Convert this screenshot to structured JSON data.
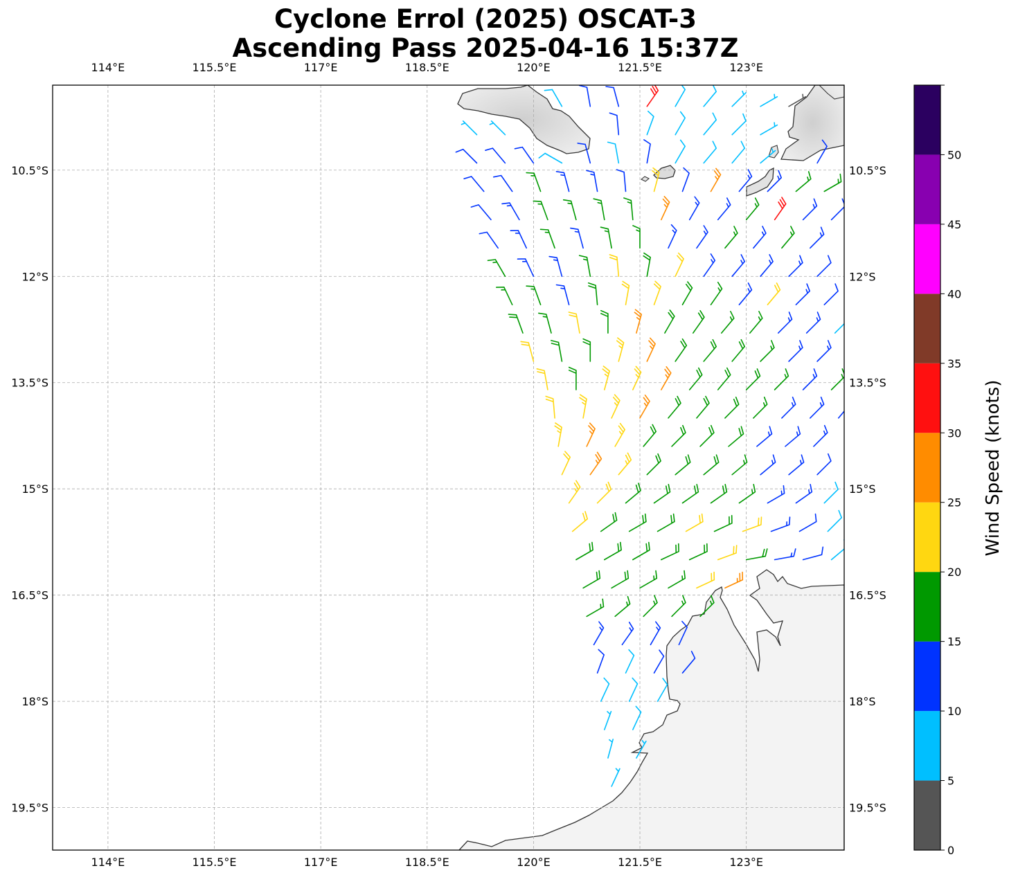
{
  "title": {
    "line1": "Cyclone Errol (2025) OSCAT-3",
    "line2": "Ascending Pass 2025-04-16 15:37Z"
  },
  "map": {
    "lon_range": [
      113.22,
      124.38
    ],
    "lat_range": [
      -20.1,
      -9.3
    ],
    "lon_ticks": [
      114,
      115.5,
      117,
      118.5,
      120,
      121.5,
      123
    ],
    "lon_tick_labels": [
      "114°E",
      "115.5°E",
      "117°E",
      "118.5°E",
      "120°E",
      "121.5°E",
      "123°E"
    ],
    "lat_ticks": [
      -10.5,
      -12,
      -13.5,
      -15,
      -16.5,
      -18,
      -19.5
    ],
    "lat_tick_labels": [
      "10.5°S",
      "12°S",
      "13.5°S",
      "15°S",
      "16.5°S",
      "18°S",
      "19.5°S"
    ],
    "grid": true,
    "land_color": "#eeeeee",
    "coastline_color": "#333333"
  },
  "colorbar": {
    "label": "Wind Speed (knots)",
    "ticks": [
      "0",
      "5",
      "10",
      "15",
      "20",
      "25",
      "30",
      "35",
      "40",
      "45",
      "50"
    ],
    "bins": [
      0,
      5,
      10,
      15,
      20,
      25,
      30,
      35,
      40,
      45,
      50,
      55
    ],
    "colors": [
      "#555555",
      "#00bfff",
      "#0033ff",
      "#009900",
      "#ffd711",
      "#ff8c00",
      "#ff1010",
      "#803a28",
      "#ff00ff",
      "#8800b0",
      "#2b0060"
    ]
  },
  "chart_data": {
    "type": "wind-barbs",
    "units": "knots",
    "fields": [
      "lon",
      "lat",
      "speed_kt",
      "direction_from_deg"
    ],
    "barbs": [
      [
        120.4,
        -9.6,
        8,
        330
      ],
      [
        120.8,
        -9.6,
        12,
        350
      ],
      [
        121.2,
        -9.6,
        12,
        345
      ],
      [
        121.6,
        -9.6,
        32,
        35
      ],
      [
        122.0,
        -9.6,
        8,
        30
      ],
      [
        122.4,
        -9.6,
        8,
        40
      ],
      [
        122.8,
        -9.6,
        7,
        45
      ],
      [
        123.2,
        -9.6,
        6,
        60
      ],
      [
        123.6,
        -9.6,
        4,
        60
      ],
      [
        119.2,
        -10.0,
        7,
        315
      ],
      [
        119.6,
        -10.0,
        7,
        315
      ],
      [
        121.2,
        -10.0,
        12,
        355
      ],
      [
        121.6,
        -10.0,
        8,
        20
      ],
      [
        122.0,
        -10.0,
        8,
        30
      ],
      [
        122.4,
        -10.0,
        9,
        40
      ],
      [
        122.8,
        -10.0,
        8,
        45
      ],
      [
        123.2,
        -10.0,
        7,
        60
      ],
      [
        119.2,
        -10.4,
        12,
        315
      ],
      [
        119.6,
        -10.4,
        11,
        320
      ],
      [
        120.0,
        -10.4,
        12,
        325
      ],
      [
        120.4,
        -10.4,
        8,
        300
      ],
      [
        120.8,
        -10.4,
        12,
        345
      ],
      [
        121.2,
        -10.4,
        9,
        350
      ],
      [
        121.6,
        -10.4,
        11,
        10
      ],
      [
        122.0,
        -10.4,
        9,
        30
      ],
      [
        122.4,
        -10.4,
        8,
        40
      ],
      [
        122.8,
        -10.4,
        8,
        40
      ],
      [
        123.2,
        -10.4,
        7,
        50
      ],
      [
        124.0,
        -10.4,
        12,
        30
      ],
      [
        119.3,
        -10.8,
        12,
        320
      ],
      [
        119.7,
        -10.8,
        12,
        325
      ],
      [
        120.1,
        -10.8,
        16,
        340
      ],
      [
        120.5,
        -10.8,
        13,
        345
      ],
      [
        120.9,
        -10.8,
        13,
        350
      ],
      [
        121.3,
        -10.8,
        12,
        355
      ],
      [
        121.7,
        -10.8,
        21,
        15
      ],
      [
        122.1,
        -10.8,
        12,
        20
      ],
      [
        122.5,
        -10.8,
        26,
        30
      ],
      [
        122.9,
        -10.8,
        13,
        40
      ],
      [
        123.3,
        -10.8,
        13,
        45
      ],
      [
        123.7,
        -10.8,
        16,
        50
      ],
      [
        124.1,
        -10.8,
        17,
        60
      ],
      [
        119.4,
        -11.2,
        12,
        320
      ],
      [
        119.8,
        -11.2,
        13,
        330
      ],
      [
        120.2,
        -11.2,
        17,
        340
      ],
      [
        120.6,
        -11.2,
        16,
        345
      ],
      [
        121.0,
        -11.2,
        16,
        350
      ],
      [
        121.4,
        -11.2,
        17,
        355
      ],
      [
        121.8,
        -11.2,
        26,
        25
      ],
      [
        122.2,
        -11.2,
        13,
        30
      ],
      [
        122.6,
        -11.2,
        14,
        40
      ],
      [
        123.0,
        -11.2,
        16,
        40
      ],
      [
        123.4,
        -11.2,
        31,
        35
      ],
      [
        123.8,
        -11.2,
        13,
        45
      ],
      [
        124.2,
        -11.2,
        12,
        45
      ],
      [
        119.5,
        -11.6,
        12,
        325
      ],
      [
        119.9,
        -11.6,
        13,
        335
      ],
      [
        120.3,
        -11.6,
        17,
        340
      ],
      [
        120.7,
        -11.6,
        14,
        345
      ],
      [
        121.1,
        -11.6,
        17,
        350
      ],
      [
        121.5,
        -11.6,
        16,
        0
      ],
      [
        121.9,
        -11.6,
        13,
        25
      ],
      [
        122.3,
        -11.6,
        14,
        35
      ],
      [
        122.7,
        -11.6,
        16,
        40
      ],
      [
        123.1,
        -11.6,
        14,
        40
      ],
      [
        123.5,
        -11.6,
        16,
        40
      ],
      [
        123.9,
        -11.6,
        13,
        45
      ],
      [
        119.6,
        -12.0,
        16,
        330
      ],
      [
        120.0,
        -12.0,
        14,
        335
      ],
      [
        120.4,
        -12.0,
        14,
        345
      ],
      [
        120.8,
        -12.0,
        17,
        350
      ],
      [
        121.2,
        -12.0,
        21,
        355
      ],
      [
        121.6,
        -12.0,
        18,
        10
      ],
      [
        122.0,
        -12.0,
        22,
        25
      ],
      [
        122.4,
        -12.0,
        14,
        35
      ],
      [
        122.8,
        -12.0,
        14,
        40
      ],
      [
        123.2,
        -12.0,
        13,
        40
      ],
      [
        123.6,
        -12.0,
        13,
        45
      ],
      [
        124.0,
        -12.0,
        12,
        45
      ],
      [
        119.7,
        -12.4,
        17,
        335
      ],
      [
        120.1,
        -12.4,
        17,
        340
      ],
      [
        120.5,
        -12.4,
        14,
        345
      ],
      [
        120.9,
        -12.4,
        18,
        355
      ],
      [
        121.3,
        -12.4,
        22,
        10
      ],
      [
        121.7,
        -12.4,
        21,
        20
      ],
      [
        122.1,
        -12.4,
        18,
        30
      ],
      [
        122.5,
        -12.4,
        17,
        35
      ],
      [
        122.9,
        -12.4,
        14,
        40
      ],
      [
        123.3,
        -12.4,
        21,
        40
      ],
      [
        123.7,
        -12.4,
        13,
        45
      ],
      [
        124.1,
        -12.4,
        12,
        45
      ],
      [
        119.85,
        -12.8,
        18,
        340
      ],
      [
        120.25,
        -12.8,
        17,
        345
      ],
      [
        120.65,
        -12.8,
        21,
        350
      ],
      [
        121.05,
        -12.8,
        19,
        0
      ],
      [
        121.45,
        -12.8,
        26,
        15
      ],
      [
        121.85,
        -12.8,
        19,
        30
      ],
      [
        122.25,
        -12.8,
        18,
        35
      ],
      [
        122.65,
        -12.8,
        17,
        40
      ],
      [
        123.05,
        -12.8,
        17,
        40
      ],
      [
        123.45,
        -12.8,
        14,
        45
      ],
      [
        123.85,
        -12.8,
        13,
        45
      ],
      [
        124.25,
        -12.8,
        9,
        45
      ],
      [
        120.0,
        -13.2,
        21,
        345
      ],
      [
        120.4,
        -13.2,
        18,
        350
      ],
      [
        120.8,
        -13.2,
        19,
        0
      ],
      [
        121.2,
        -13.2,
        23,
        15
      ],
      [
        121.6,
        -13.2,
        26,
        25
      ],
      [
        122.0,
        -13.2,
        19,
        35
      ],
      [
        122.4,
        -13.2,
        18,
        40
      ],
      [
        122.8,
        -13.2,
        18,
        40
      ],
      [
        123.2,
        -13.2,
        17,
        45
      ],
      [
        123.6,
        -13.2,
        14,
        45
      ],
      [
        124.0,
        -13.2,
        13,
        45
      ],
      [
        120.2,
        -13.6,
        22,
        350
      ],
      [
        120.6,
        -13.6,
        19,
        0
      ],
      [
        121.0,
        -13.6,
        23,
        15
      ],
      [
        121.4,
        -13.6,
        24,
        25
      ],
      [
        121.8,
        -13.6,
        27,
        30
      ],
      [
        122.2,
        -13.6,
        19,
        40
      ],
      [
        122.6,
        -13.6,
        18,
        40
      ],
      [
        123.0,
        -13.6,
        18,
        45
      ],
      [
        123.4,
        -13.6,
        17,
        45
      ],
      [
        123.8,
        -13.6,
        13,
        45
      ],
      [
        124.2,
        -13.6,
        16,
        45
      ],
      [
        120.3,
        -14.0,
        22,
        355
      ],
      [
        120.7,
        -14.0,
        23,
        10
      ],
      [
        121.1,
        -14.0,
        24,
        25
      ],
      [
        121.5,
        -14.0,
        26,
        30
      ],
      [
        121.9,
        -14.0,
        19,
        40
      ],
      [
        122.3,
        -14.0,
        19,
        40
      ],
      [
        122.7,
        -14.0,
        18,
        45
      ],
      [
        123.1,
        -14.0,
        17,
        45
      ],
      [
        123.5,
        -14.0,
        14,
        45
      ],
      [
        123.9,
        -14.0,
        13,
        45
      ],
      [
        124.3,
        -14.0,
        12,
        40
      ],
      [
        120.35,
        -14.4,
        23,
        10
      ],
      [
        120.75,
        -14.4,
        26,
        25
      ],
      [
        121.15,
        -14.4,
        24,
        30
      ],
      [
        121.55,
        -14.4,
        19,
        40
      ],
      [
        121.95,
        -14.4,
        19,
        45
      ],
      [
        122.35,
        -14.4,
        18,
        45
      ],
      [
        122.75,
        -14.4,
        18,
        50
      ],
      [
        123.15,
        -14.4,
        14,
        50
      ],
      [
        123.55,
        -14.4,
        13,
        50
      ],
      [
        123.95,
        -14.4,
        13,
        45
      ],
      [
        120.4,
        -14.8,
        22,
        25
      ],
      [
        120.8,
        -14.8,
        27,
        35
      ],
      [
        121.2,
        -14.8,
        23,
        40
      ],
      [
        121.6,
        -14.8,
        19,
        45
      ],
      [
        122.0,
        -14.8,
        19,
        50
      ],
      [
        122.4,
        -14.8,
        18,
        50
      ],
      [
        122.8,
        -14.8,
        17,
        50
      ],
      [
        123.2,
        -14.8,
        14,
        50
      ],
      [
        123.6,
        -14.8,
        13,
        50
      ],
      [
        124.0,
        -14.8,
        12,
        45
      ],
      [
        120.5,
        -15.2,
        23,
        35
      ],
      [
        120.9,
        -15.2,
        22,
        45
      ],
      [
        121.3,
        -15.2,
        19,
        50
      ],
      [
        121.7,
        -15.2,
        19,
        55
      ],
      [
        122.1,
        -15.2,
        18,
        55
      ],
      [
        122.5,
        -15.2,
        18,
        55
      ],
      [
        122.9,
        -15.2,
        17,
        55
      ],
      [
        123.3,
        -15.2,
        14,
        60
      ],
      [
        123.7,
        -15.2,
        13,
        55
      ],
      [
        124.1,
        -15.2,
        9,
        45
      ],
      [
        120.55,
        -15.6,
        22,
        50
      ],
      [
        120.95,
        -15.6,
        19,
        55
      ],
      [
        121.35,
        -15.6,
        19,
        60
      ],
      [
        121.75,
        -15.6,
        18,
        60
      ],
      [
        122.15,
        -15.6,
        21,
        60
      ],
      [
        122.55,
        -15.6,
        18,
        65
      ],
      [
        122.95,
        -15.6,
        21,
        70
      ],
      [
        123.35,
        -15.6,
        13,
        70
      ],
      [
        123.75,
        -15.6,
        12,
        60
      ],
      [
        124.15,
        -15.6,
        8,
        45
      ],
      [
        120.6,
        -16.0,
        18,
        60
      ],
      [
        121.0,
        -16.0,
        18,
        60
      ],
      [
        121.4,
        -16.0,
        19,
        60
      ],
      [
        121.8,
        -16.0,
        18,
        65
      ],
      [
        122.2,
        -16.0,
        19,
        65
      ],
      [
        122.6,
        -16.0,
        21,
        70
      ],
      [
        123.0,
        -16.0,
        18,
        80
      ],
      [
        123.4,
        -16.0,
        13,
        80
      ],
      [
        123.8,
        -16.0,
        12,
        75
      ],
      [
        124.2,
        -16.0,
        8,
        50
      ],
      [
        120.7,
        -16.4,
        18,
        60
      ],
      [
        121.1,
        -16.4,
        18,
        60
      ],
      [
        121.5,
        -16.4,
        17,
        60
      ],
      [
        121.9,
        -16.4,
        17,
        60
      ],
      [
        122.3,
        -16.4,
        21,
        65
      ],
      [
        122.7,
        -16.4,
        27,
        65
      ],
      [
        120.75,
        -16.8,
        17,
        60
      ],
      [
        121.15,
        -16.8,
        17,
        50
      ],
      [
        121.55,
        -16.8,
        16,
        45
      ],
      [
        121.95,
        -16.8,
        17,
        45
      ],
      [
        122.35,
        -16.8,
        16,
        45
      ],
      [
        120.85,
        -17.2,
        13,
        30
      ],
      [
        121.25,
        -17.2,
        13,
        35
      ],
      [
        121.65,
        -17.2,
        13,
        30
      ],
      [
        122.05,
        -17.2,
        12,
        25
      ],
      [
        120.9,
        -17.6,
        11,
        20
      ],
      [
        121.3,
        -17.6,
        9,
        25
      ],
      [
        121.7,
        -17.6,
        12,
        30
      ],
      [
        122.1,
        -17.6,
        11,
        40
      ],
      [
        120.95,
        -18.0,
        8,
        25
      ],
      [
        121.35,
        -18.0,
        9,
        25
      ],
      [
        121.75,
        -18.0,
        8,
        30
      ],
      [
        121.0,
        -18.4,
        7,
        20
      ],
      [
        121.4,
        -18.4,
        8,
        25
      ],
      [
        121.05,
        -18.8,
        7,
        15
      ],
      [
        121.45,
        -18.8,
        7,
        30
      ],
      [
        121.1,
        -19.2,
        7,
        25
      ]
    ]
  }
}
